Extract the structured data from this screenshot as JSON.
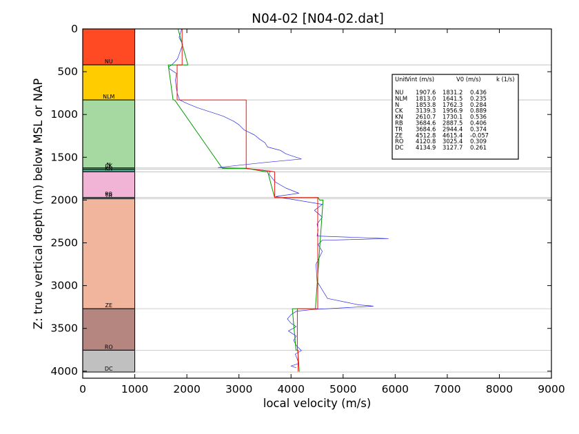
{
  "chart_data": {
    "type": "line",
    "title": "N04-02 [N04-02.dat]",
    "xlabel": "local velocity (m/s)",
    "ylabel": "Z: true vertical depth (m) below MSL or NAP",
    "xlim": [
      0,
      9000
    ],
    "ylim": [
      4100,
      0
    ],
    "x_ticks": [
      "0",
      "1000",
      "2000",
      "3000",
      "4000",
      "5000",
      "6000",
      "7000",
      "8000",
      "9000"
    ],
    "y_ticks": [
      "0",
      "500",
      "1000",
      "1500",
      "2000",
      "2500",
      "3000",
      "3500",
      "4000"
    ],
    "grid": false,
    "units": [
      {
        "name": "NU",
        "top": 0,
        "base": 420,
        "color": "#ff4a24"
      },
      {
        "name": "NLM",
        "top": 420,
        "base": 830,
        "color": "#ffcc00"
      },
      {
        "name": "N",
        "top": 830,
        "base": 1625,
        "color": "#a6d8a2"
      },
      {
        "name": "CK",
        "top": 1625,
        "base": 1640,
        "color": "#8dd0a4"
      },
      {
        "name": "KN",
        "top": 1640,
        "base": 1670,
        "color": "#4fa38a"
      },
      {
        "name": "RB",
        "top": 1670,
        "base": 1970,
        "color": "#f2b4d6"
      },
      {
        "name": "TR",
        "top": 1970,
        "base": 1985,
        "color": "#e9a08c"
      },
      {
        "name": "ZE",
        "top": 1985,
        "base": 3270,
        "color": "#f1b59e"
      },
      {
        "name": "RO",
        "top": 3270,
        "base": 3755,
        "color": "#b5857f"
      },
      {
        "name": "DC",
        "top": 3755,
        "base": 4010,
        "color": "#c0c0c0"
      }
    ],
    "series": [
      {
        "color": "#2a2ae8",
        "x": [
          1900,
          1850,
          1920,
          1880,
          1820,
          1760,
          1710,
          1660,
          1650,
          1700,
          1800,
          1780,
          1800,
          1820,
          1860,
          2000,
          2200,
          2500,
          2700,
          2900,
          3000,
          3100,
          3300,
          3400,
          3500,
          3550,
          3800,
          3900,
          4200,
          3500,
          2600,
          3100,
          3600,
          3580,
          3700,
          3900,
          4150,
          3700,
          4100,
          4600,
          4450,
          4600,
          4500,
          4520,
          4500,
          5870,
          4600,
          4520,
          4600,
          4480,
          4500,
          4700,
          5100,
          5300,
          5580,
          5000,
          4700,
          4400,
          4100,
          4000,
          3930,
          4000,
          4100,
          3950,
          4100,
          4050,
          4100,
          4200,
          4080,
          4120,
          4150,
          4000,
          4100
        ],
        "y": [
          0,
          100,
          180,
          250,
          350,
          390,
          420,
          440,
          460,
          480,
          520,
          600,
          700,
          760,
          830,
          870,
          920,
          980,
          1020,
          1080,
          1120,
          1180,
          1240,
          1290,
          1330,
          1380,
          1420,
          1460,
          1520,
          1560,
          1620,
          1630,
          1660,
          1700,
          1790,
          1860,
          1920,
          1960,
          2000,
          2050,
          2120,
          2200,
          2280,
          2350,
          2420,
          2450,
          2470,
          2520,
          2600,
          2750,
          2950,
          3150,
          3200,
          3225,
          3240,
          3260,
          3270,
          3280,
          3300,
          3340,
          3390,
          3440,
          3480,
          3530,
          3590,
          3640,
          3700,
          3760,
          3800,
          3860,
          3910,
          3940,
          3960
        ]
      },
      {
        "color": "#009900",
        "x": [
          1831,
          2020,
          1642,
          1735,
          1765,
          2682,
          3153,
          3512,
          3552,
          3685,
          4522,
          4548,
          4615,
          4468,
          4025,
          4095,
          4128,
          4160
        ],
        "y": [
          0,
          420,
          420,
          830,
          830,
          1630,
          1630,
          1670,
          1670,
          1970,
          1970,
          2000,
          2000,
          3270,
          3270,
          3755,
          3755,
          4005
        ]
      },
      {
        "color": "#ee1111",
        "x": [
          1908,
          1908,
          1813,
          1813,
          3139,
          3139,
          3685,
          3685,
          4513,
          4513,
          4121,
          4121,
          4135,
          4135
        ],
        "y": [
          0,
          420,
          420,
          830,
          830,
          1630,
          1670,
          1970,
          1970,
          3270,
          3270,
          3755,
          3755,
          4005
        ]
      }
    ],
    "table": {
      "headers": [
        "Unit",
        "Vint (m/s)",
        "V0 (m/s)",
        "k (1/s)"
      ],
      "rows": [
        [
          "NU",
          "1907.6",
          "1831.2",
          "0.436"
        ],
        [
          "NLM",
          "1813.0",
          "1641.5",
          "0.235"
        ],
        [
          "N",
          "1853.8",
          "1762.3",
          "0.284"
        ],
        [
          "CK",
          "3139.3",
          "1956.9",
          "0.889"
        ],
        [
          "KN",
          "2610.7",
          "1730.1",
          "0.536"
        ],
        [
          "RB",
          "3684.6",
          "2887.5",
          "0.406"
        ],
        [
          "TR",
          "3684.6",
          "2944.4",
          "0.374"
        ],
        [
          "ZE",
          "4512.8",
          "4615.4",
          "-0.057"
        ],
        [
          "RO",
          "4120.8",
          "3025.4",
          "0.309"
        ],
        [
          "DC",
          "4134.9",
          "3127.7",
          "0.261"
        ]
      ]
    }
  }
}
